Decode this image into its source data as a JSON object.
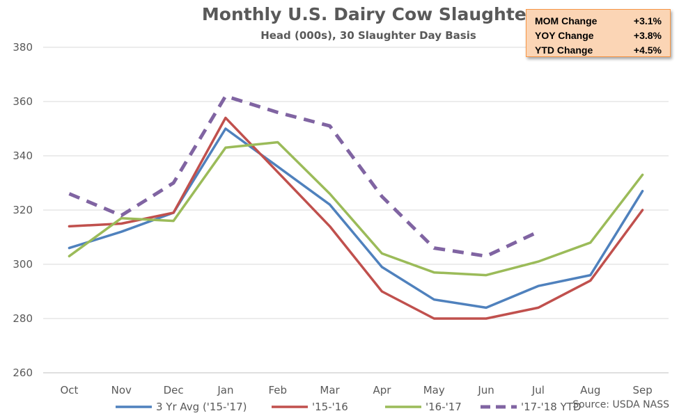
{
  "chart_data": {
    "type": "line",
    "title": "Monthly U.S. Dairy Cow Slaughter",
    "subtitle": "Head (000s), 30 Slaughter Day Basis",
    "categories": [
      "Oct",
      "Nov",
      "Dec",
      "Jan",
      "Feb",
      "Mar",
      "Apr",
      "May",
      "Jun",
      "Jul",
      "Aug",
      "Sep"
    ],
    "ylim": [
      260,
      380
    ],
    "yticks": [
      260,
      280,
      300,
      320,
      340,
      360,
      380
    ],
    "grid": "horizontal",
    "legend_position": "bottom",
    "series": [
      {
        "name": "3 Yr Avg ('15-'17)",
        "color": "#4f81bd",
        "dash": "solid",
        "values": [
          306,
          312,
          319,
          350,
          336,
          322,
          299,
          287,
          284,
          292,
          296,
          327
        ]
      },
      {
        "name": "'15-'16",
        "color": "#c0504d",
        "dash": "solid",
        "values": [
          314,
          315,
          319,
          354,
          334,
          314,
          290,
          280,
          280,
          284,
          294,
          320
        ]
      },
      {
        "name": "'16-'17",
        "color": "#9bbb59",
        "dash": "solid",
        "values": [
          303,
          317,
          316,
          343,
          345,
          326,
          304,
          297,
          296,
          301,
          308,
          333
        ]
      },
      {
        "name": "'17-'18 YTD",
        "color": "#8064a2",
        "dash": "dashed",
        "values": [
          326,
          318,
          330,
          362,
          356,
          351,
          325,
          306,
          303,
          312,
          null,
          null
        ]
      }
    ],
    "annotations": {
      "source": "Source: USDA NASS",
      "stats": [
        {
          "label": "MOM Change",
          "value": "+3.1%"
        },
        {
          "label": "YOY Change",
          "value": "+3.8%"
        },
        {
          "label": "YTD Change",
          "value": "+4.5%"
        }
      ]
    }
  }
}
